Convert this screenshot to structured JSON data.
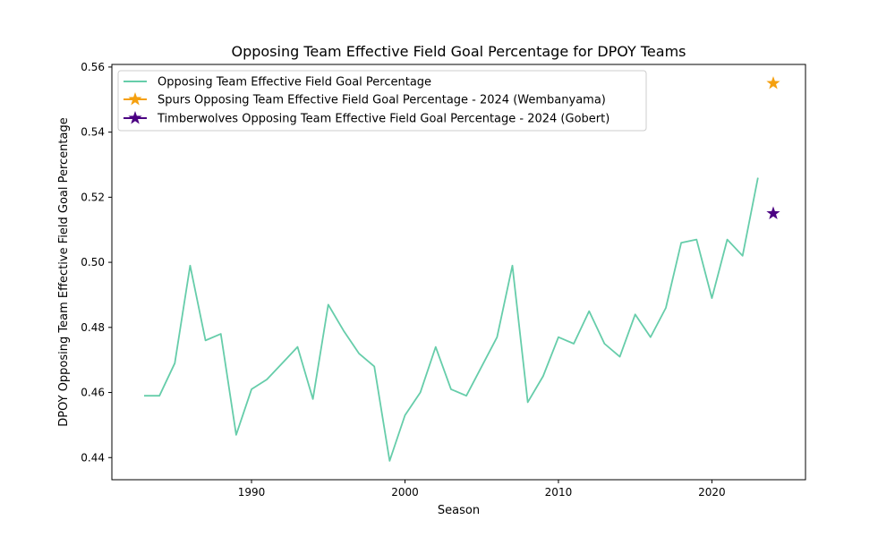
{
  "chart_data": {
    "type": "line",
    "title": "Opposing Team Effective Field Goal Percentage for DPOY Teams",
    "xlabel": "Season",
    "ylabel": "DPOY Opposing Team Effective Field Goal Percentage",
    "xlim": [
      1980.9,
      2026.1
    ],
    "ylim": [
      0.4332,
      0.5608
    ],
    "xticks": [
      1990,
      2000,
      2010,
      2020
    ],
    "yticks": [
      0.44,
      0.46,
      0.48,
      0.5,
      0.52,
      0.54,
      0.56
    ],
    "ytick_labels": [
      "0.44",
      "0.46",
      "0.48",
      "0.50",
      "0.52",
      "0.54",
      "0.56"
    ],
    "grid": false,
    "legend_position": "top-left",
    "series": [
      {
        "name": "Opposing Team Effective Field Goal Percentage",
        "kind": "line",
        "color": "#66cdaa",
        "x": [
          1983,
          1984,
          1985,
          1986,
          1987,
          1988,
          1989,
          1990,
          1991,
          1992,
          1993,
          1994,
          1995,
          1996,
          1997,
          1998,
          1999,
          2000,
          2001,
          2002,
          2003,
          2004,
          2005,
          2006,
          2007,
          2008,
          2009,
          2010,
          2011,
          2012,
          2013,
          2014,
          2015,
          2016,
          2017,
          2018,
          2019,
          2020,
          2021,
          2022,
          2023
        ],
        "y": [
          0.459,
          0.459,
          0.469,
          0.499,
          0.476,
          0.478,
          0.447,
          0.461,
          0.464,
          0.469,
          0.474,
          0.458,
          0.487,
          0.479,
          0.472,
          0.468,
          0.439,
          0.453,
          0.46,
          0.474,
          0.461,
          0.459,
          0.468,
          0.477,
          0.499,
          0.457,
          0.465,
          0.477,
          0.475,
          0.485,
          0.475,
          0.471,
          0.484,
          0.477,
          0.486,
          0.506,
          0.507,
          0.489,
          0.507,
          0.502,
          0.526
        ]
      },
      {
        "name": "Spurs Opposing Team Effective Field Goal Percentage - 2024 (Wembanyama)",
        "kind": "star",
        "color": "#f5a00f",
        "x": [
          2024
        ],
        "y": [
          0.555
        ]
      },
      {
        "name": "Timberwolves Opposing Team Effective Field Goal Percentage - 2024 (Gobert)",
        "kind": "star",
        "color": "#4b0082",
        "x": [
          2024
        ],
        "y": [
          0.515
        ]
      }
    ]
  }
}
